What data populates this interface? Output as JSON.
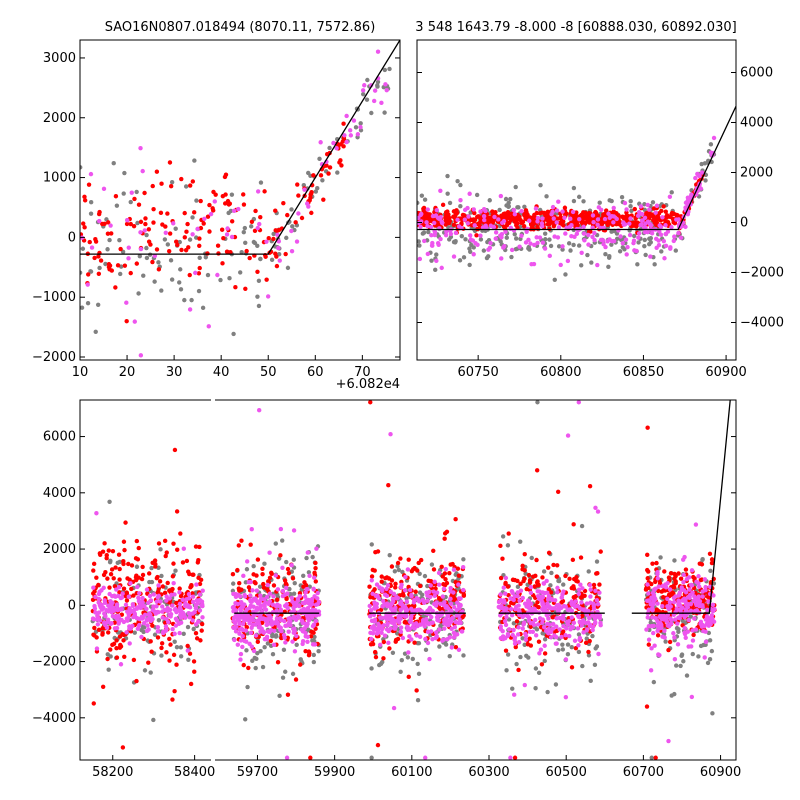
{
  "figure": {
    "colors": {
      "gray": "#808080",
      "red": "#ff0000",
      "magenta": "#ee55ee",
      "model": "#000000"
    }
  },
  "chart_data": [
    {
      "type": "scatter",
      "title": "SAO16N0807.018494 (8070.11, 7572.86)",
      "xlim": [
        10,
        78
      ],
      "ylim": [
        -2050,
        3300
      ],
      "xticks": [
        10,
        20,
        30,
        40,
        50,
        60,
        70
      ],
      "yticks": [
        -2000,
        -1000,
        0,
        1000,
        2000,
        3000
      ],
      "xtick_labels": [
        "10",
        "20",
        "30",
        "40",
        "50",
        "60",
        "70"
      ],
      "ytick_labels": [
        "−2000",
        "−1000",
        "0",
        "1000",
        "2000",
        "3000"
      ],
      "offset_label": "+6.082e4",
      "model_line": {
        "x": [
          10,
          50,
          78
        ],
        "y": [
          -280,
          -280,
          3300
        ]
      },
      "series_gen": [
        {
          "name": "gray",
          "color_key": "gray",
          "n": 150,
          "seed": 11,
          "x": [
            10,
            76
          ],
          "base": -120,
          "sigma": 650,
          "break": 50,
          "slope": 120
        },
        {
          "name": "red",
          "color_key": "red",
          "n": 190,
          "seed": 12,
          "x": [
            10,
            67
          ],
          "base": 80,
          "sigma": 480,
          "break": 50,
          "slope": 120
        },
        {
          "name": "magenta",
          "color_key": "magenta",
          "n": 75,
          "seed": 13,
          "x": [
            10,
            76
          ],
          "base": -150,
          "sigma": 700,
          "break": 50,
          "slope": 120
        }
      ]
    },
    {
      "type": "scatter",
      "title": "3 548 1643.79 -8.000 -8 [60888.030, 60892.030]",
      "xlim": [
        60713,
        60906
      ],
      "ylim": [
        -5500,
        7300
      ],
      "xticks": [
        60750,
        60800,
        60850,
        60900
      ],
      "yticks": [
        -4000,
        -2000,
        0,
        2000,
        4000,
        6000
      ],
      "xtick_labels": [
        "60750",
        "60800",
        "60850",
        "60900"
      ],
      "ytick_labels": [
        "−4000",
        "−2000",
        "0",
        "2000",
        "4000",
        "6000"
      ],
      "yaxis_side": "right",
      "model_line": {
        "x": [
          60713,
          60871,
          60906
        ],
        "y": [
          -280,
          -280,
          4650
        ]
      },
      "series_gen": [
        {
          "name": "gray",
          "color_key": "gray",
          "n": 320,
          "seed": 21,
          "x": [
            60713,
            60893
          ],
          "base": -250,
          "sigma": 700,
          "break": 60871,
          "slope": 150
        },
        {
          "name": "red",
          "color_key": "red",
          "n": 650,
          "seed": 22,
          "x": [
            60713,
            60886
          ],
          "base": 130,
          "sigma": 180,
          "break": 60871,
          "slope": 150
        },
        {
          "name": "magenta",
          "color_key": "magenta",
          "n": 300,
          "seed": 23,
          "x": [
            60713,
            60893
          ],
          "base": -300,
          "sigma": 550,
          "break": 60871,
          "slope": 150
        }
      ]
    },
    {
      "type": "scatter",
      "title": "",
      "ylim": [
        -5500,
        7300
      ],
      "yticks": [
        -4000,
        -2000,
        0,
        2000,
        4000,
        6000
      ],
      "ytick_labels": [
        "−4000",
        "−2000",
        "0",
        "2000",
        "4000",
        "6000"
      ],
      "segments": [
        {
          "xlim": [
            58120,
            58440
          ],
          "xticks": [
            58200,
            58400
          ],
          "xtick_labels": [
            "58200",
            "58400"
          ]
        },
        {
          "xlim": [
            59590,
            60940
          ],
          "xticks": [
            59700,
            59900,
            60100,
            60300,
            60500,
            60700,
            60900
          ],
          "xtick_labels": [
            "59700",
            "59900",
            "60100",
            "60300",
            "60500",
            "60700",
            "60900"
          ]
        }
      ],
      "model_lines": [
        {
          "segment": 1,
          "x": [
            59640,
            59860
          ],
          "y": [
            -280,
            -280
          ]
        },
        {
          "segment": 1,
          "x": [
            59990,
            60240
          ],
          "y": [
            -280,
            -280
          ]
        },
        {
          "segment": 1,
          "x": [
            60325,
            60600
          ],
          "y": [
            -280,
            -280
          ]
        },
        {
          "segment": 1,
          "x": [
            60670,
            60871,
            60925
          ],
          "y": [
            -280,
            -280,
            7300
          ]
        }
      ],
      "clusters_gen": [
        {
          "segment": 0,
          "x": [
            58150,
            58420
          ],
          "seed": 31,
          "red": 260,
          "magenta": 250,
          "gray": 120,
          "red_base": 300,
          "red_sigma": 1100,
          "mag_base": -200,
          "mag_sigma": 450,
          "gray_base": -350,
          "gray_sigma": 900
        },
        {
          "segment": 1,
          "x": [
            59635,
            59860
          ],
          "seed": 32,
          "red": 170,
          "magenta": 320,
          "gray": 150,
          "red_base": 0,
          "red_sigma": 900,
          "mag_base": -300,
          "mag_sigma": 550,
          "gray_base": -300,
          "gray_sigma": 1000
        },
        {
          "segment": 1,
          "x": [
            59990,
            60235
          ],
          "seed": 33,
          "red": 230,
          "magenta": 300,
          "gray": 150,
          "red_base": 150,
          "red_sigma": 800,
          "mag_base": -300,
          "mag_sigma": 550,
          "gray_base": -300,
          "gray_sigma": 1000
        },
        {
          "segment": 1,
          "x": [
            60325,
            60590
          ],
          "seed": 34,
          "red": 210,
          "magenta": 280,
          "gray": 140,
          "red_base": 0,
          "red_sigma": 800,
          "mag_base": -300,
          "mag_sigma": 550,
          "gray_base": -300,
          "gray_sigma": 1100
        },
        {
          "segment": 1,
          "x": [
            60705,
            60885
          ],
          "seed": 35,
          "red": 230,
          "magenta": 220,
          "gray": 120,
          "red_base": 200,
          "red_sigma": 600,
          "mag_base": -300,
          "mag_sigma": 600,
          "gray_base": -300,
          "gray_sigma": 1000
        }
      ]
    }
  ]
}
